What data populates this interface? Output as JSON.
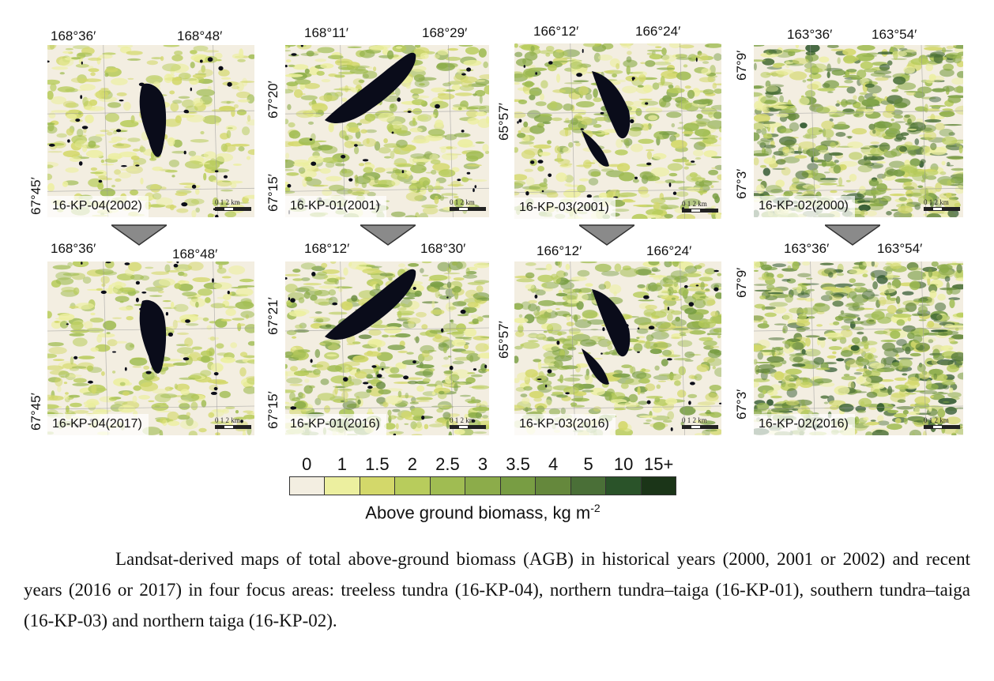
{
  "panels": [
    {
      "id": "kp04_2002",
      "label": "16-KP-04(2002)",
      "top": [
        "168°36′",
        "168°48′"
      ],
      "left": [
        "67°45′"
      ],
      "scale": "0  1   2 km",
      "lake": "a"
    },
    {
      "id": "kp01_2001",
      "label": "16-KP-01(2001)",
      "top": [
        "168°11′",
        "168°29′"
      ],
      "left": [
        "67°20′",
        "67°15′"
      ],
      "scale": "0  1  2 km",
      "lake": "b"
    },
    {
      "id": "kp03_2001",
      "label": "16-KP-03(2001)",
      "top": [
        "166°12′",
        "166°24′"
      ],
      "left": [
        "65°57′"
      ],
      "scale": "0  1  2 km",
      "lake": "c"
    },
    {
      "id": "kp02_2000",
      "label": "16-KP-02(2000)",
      "top": [
        "163°36′",
        "163°54′"
      ],
      "left": [
        "67°9′",
        "67°3′"
      ],
      "scale": "0  1  2 km",
      "lake": "none"
    },
    {
      "id": "kp04_2017",
      "label": "16-KP-04(2017)",
      "top": [
        "168°36′",
        "168°48′"
      ],
      "left": [
        "67°45′"
      ],
      "scale": "0  1   2 km",
      "lake": "a"
    },
    {
      "id": "kp01_2016",
      "label": "16-KP-01(2016)",
      "top": [
        "168°12′",
        "168°30′"
      ],
      "left": [
        "67°21′",
        "67°15′"
      ],
      "scale": "0  1  2 km",
      "lake": "b"
    },
    {
      "id": "kp03_2016",
      "label": "16-KP-03(2016)",
      "top": [
        "166°12′",
        "166°24′"
      ],
      "left": [
        "65°57′"
      ],
      "scale": "0  1  2 km",
      "lake": "c"
    },
    {
      "id": "kp02_2016",
      "label": "16-KP-02(2016)",
      "top": [
        "163°36′",
        "163°54′"
      ],
      "left": [
        "67°9′",
        "67°3′"
      ],
      "scale": "0  1  2 km",
      "lake": "none"
    }
  ],
  "legend": {
    "ticks": [
      "0",
      "1",
      "1.5",
      "2",
      "2.5",
      "3",
      "3.5",
      "4",
      "5",
      "10",
      "15+"
    ],
    "colors": [
      "#f3eee1",
      "#ecef9f",
      "#d3d86a",
      "#b8cc5c",
      "#a0bc52",
      "#8cac4a",
      "#789d43",
      "#65883c",
      "#4a6f37",
      "#2a5329",
      "#1b3518"
    ],
    "title": "Above ground biomass, kg m",
    "title_sup": "-2"
  },
  "caption": "Landsat-derived maps of total above-ground biomass (AGB) in historical years (2000, 2001 or 2002) and recent years (2016 or 2017) in four focus areas: treeless tundra (16-KP-04), northern tundra–taiga (16-KP-01), southern tundra–taiga (16-KP-03) and northern taiga (16-KP-02)."
}
